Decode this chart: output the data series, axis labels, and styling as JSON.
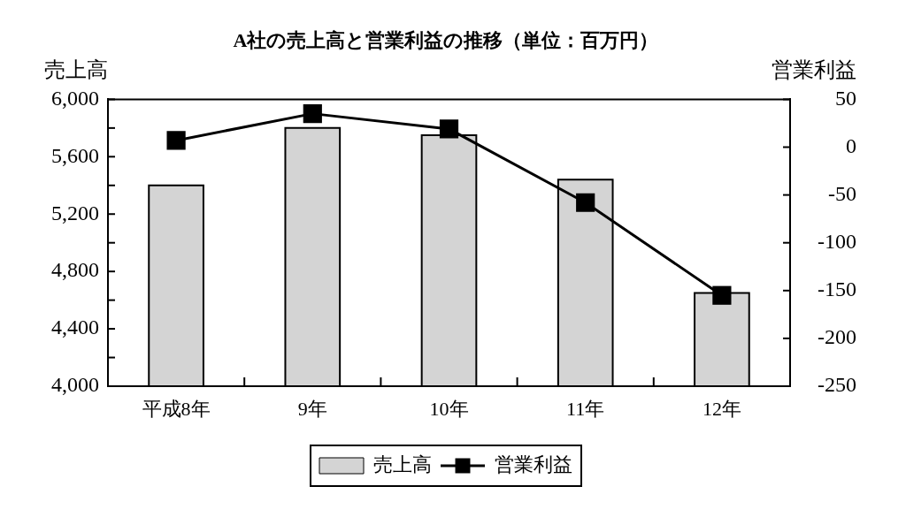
{
  "chart_data": {
    "type": "bar",
    "title": "A社の売上高と営業利益の推移（単位：百万円）",
    "ylabel": "売上高",
    "y2label": "営業利益",
    "categories": [
      "平成8年",
      "9年",
      "10年",
      "11年",
      "12年"
    ],
    "series": [
      {
        "name": "売上高",
        "color": "#d4d4d4",
        "values": [
          5400,
          5800,
          5750,
          5440,
          4650
        ]
      },
      {
        "name": "営業利益",
        "type": "line",
        "color": "#000000",
        "axis": "y2",
        "values": [
          7,
          35,
          19,
          -58,
          -155
        ]
      }
    ],
    "ylim": [
      4000,
      6000
    ],
    "yticks": [
      {
        "value": 4000,
        "label": "4,000"
      },
      {
        "value": 4200,
        "label": null
      },
      {
        "value": 4400,
        "label": "4,400"
      },
      {
        "value": 4600,
        "label": null
      },
      {
        "value": 4800,
        "label": "4,800"
      },
      {
        "value": 5000,
        "label": null
      },
      {
        "value": 5200,
        "label": "5,200"
      },
      {
        "value": 5400,
        "label": null
      },
      {
        "value": 5600,
        "label": "5,600"
      },
      {
        "value": 5800,
        "label": null
      },
      {
        "value": 6000,
        "label": "6,000"
      }
    ],
    "y2lim": [
      -250,
      50
    ],
    "y2ticks": [
      -250,
      -200,
      -150,
      -100,
      -50,
      0,
      50
    ],
    "grid": false,
    "legend": "bottom",
    "marker": "square",
    "line_style": "solid"
  }
}
